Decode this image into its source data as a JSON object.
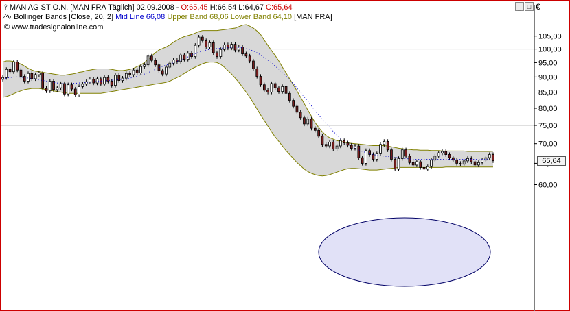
{
  "header": {
    "instrument": "MAN AG ST O.N. [MAN FRA  Täglich] 02.09.2008",
    "ohlc_open": "O:65,45",
    "ohlc_high": "H:66,54",
    "ohlc_low": "L:64,67",
    "ohlc_close": "C:65,64",
    "indicator_prefix": "Bollinger Bands [Close, 20, 2]",
    "mid_line": "Mid Line 66,08",
    "upper_band": "Upper Band 68,06",
    "lower_band": "Lower Band 64,10",
    "indicator_suffix": "[MAN FRA]",
    "copyright": "© www.tradesignalonline.com"
  },
  "window_controls": {
    "minimize": "_",
    "maximize": "□"
  },
  "axis": {
    "currency": "€",
    "last_price": "65,64"
  },
  "colors": {
    "bull": "#ffffff",
    "bear": "#7a1f1f",
    "band_fill": "#d8d8d8",
    "band_line": "#808000",
    "mid_line": "#0000cc",
    "ellipse_fill": "#c8c8f0",
    "ellipse_stroke": "#000066",
    "border": "#cc0000"
  },
  "chart_data": {
    "type": "candlestick",
    "title": "MAN AG ST O.N. [MAN FRA  Täglich] 02.09.2008",
    "yaxis": {
      "scale": "log",
      "range": [
        59.0,
        112.0
      ],
      "ticks": [
        60,
        65,
        70,
        75,
        80,
        85,
        90,
        95,
        100,
        105
      ],
      "tick_labels": [
        "60,00",
        "65,00",
        "70,00",
        "75,00",
        "80,00",
        "85,00",
        "90,00",
        "95,00",
        "100,00",
        "105,00"
      ]
    },
    "grid_lines": [
      75,
      100
    ],
    "closes": [
      89.8,
      92.6,
      91.8,
      95.2,
      92.4,
      90.2,
      88.6,
      91.2,
      89.4,
      90.8,
      91.4,
      86.2,
      85.4,
      88.6,
      85.8,
      86.4,
      87.8,
      84.4,
      87.4,
      86.0,
      84.2,
      86.8,
      87.6,
      88.4,
      89.2,
      88.0,
      89.4,
      87.6,
      89.8,
      88.6,
      87.2,
      90.6,
      88.8,
      89.6,
      91.2,
      90.8,
      92.4,
      91.4,
      93.6,
      94.2,
      97.4,
      95.8,
      94.2,
      92.2,
      91.0,
      93.4,
      94.8,
      96.0,
      95.4,
      97.8,
      96.2,
      98.4,
      97.2,
      101.4,
      104.6,
      103.2,
      100.8,
      102.4,
      98.6,
      97.2,
      99.8,
      101.6,
      100.4,
      101.8,
      99.6,
      100.8,
      98.2,
      97.4,
      95.6,
      92.8,
      90.2,
      87.4,
      85.6,
      85.0,
      87.8,
      86.4,
      85.2,
      86.8,
      84.6,
      82.4,
      80.6,
      78.8,
      77.2,
      75.4,
      76.8,
      74.2,
      73.6,
      72.0,
      69.8,
      69.4,
      70.4,
      68.6,
      69.4,
      70.8,
      70.2,
      69.6,
      68.8,
      69.4,
      66.4,
      65.0,
      68.2,
      67.2,
      66.0,
      67.4,
      69.8,
      70.6,
      68.4,
      66.0,
      63.6,
      66.2,
      68.4,
      66.8,
      65.2,
      64.6,
      65.4,
      64.0,
      63.6,
      64.2,
      65.8,
      66.8,
      67.6,
      68.0,
      67.2,
      66.4,
      65.8,
      65.0,
      64.8,
      65.6,
      66.2,
      65.4,
      64.6,
      65.2,
      65.8,
      66.4,
      67.2,
      65.64
    ],
    "upper_band": [
      95.2,
      95.6,
      95.6,
      95.4,
      95.0,
      94.5,
      93.8,
      93.0,
      92.4,
      92.0,
      91.8,
      91.6,
      91.4,
      91.2,
      91.0,
      90.8,
      90.6,
      90.6,
      90.8,
      91.0,
      91.2,
      91.6,
      91.8,
      92.2,
      92.4,
      92.6,
      92.8,
      92.8,
      92.8,
      92.8,
      92.6,
      92.4,
      92.2,
      92.2,
      92.4,
      92.6,
      93.0,
      93.6,
      94.2,
      95.0,
      96.2,
      97.4,
      98.6,
      99.6,
      100.2,
      100.8,
      101.6,
      102.6,
      103.4,
      104.2,
      104.8,
      105.2,
      105.6,
      106.2,
      106.8,
      107.2,
      107.2,
      107.2,
      107.2,
      107.2,
      107.4,
      107.6,
      107.8,
      108.0,
      108.2,
      108.8,
      109.4,
      109.6,
      109.0,
      108.2,
      107.0,
      105.6,
      103.4,
      101.4,
      99.4,
      97.6,
      95.6,
      93.4,
      91.4,
      89.4,
      87.4,
      85.4,
      83.4,
      81.4,
      79.4,
      77.6,
      75.8,
      74.4,
      73.2,
      72.2,
      71.6,
      71.2,
      70.8,
      70.6,
      70.4,
      70.2,
      70.1,
      70.0,
      69.9,
      69.8,
      69.7,
      69.6,
      69.5,
      69.5,
      69.5,
      69.5,
      69.4,
      69.2,
      69.0,
      68.8,
      68.7,
      68.6,
      68.5,
      68.4,
      68.4,
      68.3,
      68.3,
      68.3,
      68.2,
      68.2,
      68.2,
      68.1,
      68.1,
      68.1,
      68.1,
      68.1,
      68.1,
      68.1,
      68.0,
      68.0,
      68.0,
      68.0,
      68.0,
      68.0,
      68.0,
      68.06
    ],
    "mid_line": [
      89.4,
      89.6,
      89.8,
      90.0,
      90.0,
      89.9,
      89.8,
      89.6,
      89.4,
      89.2,
      89.0,
      88.8,
      88.6,
      88.4,
      88.2,
      88.0,
      87.8,
      87.7,
      87.7,
      87.8,
      87.9,
      88.0,
      88.1,
      88.2,
      88.3,
      88.4,
      88.5,
      88.6,
      88.7,
      88.8,
      88.9,
      89.0,
      89.1,
      89.2,
      89.4,
      89.6,
      89.9,
      90.2,
      90.6,
      91.0,
      91.5,
      92.0,
      92.6,
      93.2,
      93.7,
      94.1,
      94.5,
      95.0,
      95.5,
      96.0,
      96.5,
      97.1,
      97.7,
      98.3,
      98.8,
      99.2,
      99.6,
      99.9,
      100.1,
      100.2,
      100.3,
      100.4,
      100.5,
      100.6,
      100.6,
      100.6,
      100.5,
      100.2,
      99.8,
      99.3,
      98.6,
      97.8,
      96.9,
      95.9,
      94.9,
      93.8,
      92.7,
      91.5,
      90.3,
      89.0,
      87.7,
      86.3,
      84.9,
      83.5,
      82.1,
      80.7,
      79.3,
      78.0,
      76.7,
      75.5,
      74.4,
      73.3,
      72.3,
      71.4,
      70.6,
      69.9,
      69.3,
      68.8,
      68.4,
      68.0,
      67.7,
      67.4,
      67.2,
      67.0,
      66.9,
      66.8,
      66.7,
      66.6,
      66.5,
      66.4,
      66.3,
      66.2,
      66.1,
      66.0,
      66.0,
      66.0,
      66.0,
      66.0,
      66.0,
      66.0,
      66.0,
      66.0,
      66.0,
      66.0,
      66.0,
      66.0,
      66.0,
      66.0,
      66.0,
      66.0,
      66.0,
      66.0,
      66.0,
      66.0,
      66.08
    ],
    "lower_band": [
      83.4,
      83.6,
      84.0,
      84.5,
      85.0,
      85.4,
      85.8,
      86.0,
      86.2,
      86.2,
      86.2,
      86.0,
      85.8,
      85.6,
      85.4,
      85.2,
      85.0,
      84.8,
      84.6,
      84.6,
      84.6,
      84.6,
      84.6,
      84.6,
      84.6,
      84.6,
      84.6,
      84.6,
      84.8,
      85.0,
      85.2,
      85.4,
      85.6,
      85.8,
      86.0,
      86.2,
      86.4,
      86.6,
      86.8,
      87.0,
      87.2,
      87.4,
      87.6,
      87.8,
      88.0,
      88.2,
      88.6,
      89.2,
      89.8,
      90.4,
      91.2,
      92.0,
      92.8,
      93.4,
      94.0,
      94.6,
      95.0,
      95.2,
      95.2,
      95.0,
      94.4,
      93.4,
      92.2,
      91.0,
      89.6,
      88.2,
      86.6,
      85.0,
      83.4,
      81.6,
      79.8,
      78.0,
      76.4,
      74.8,
      73.2,
      71.8,
      70.6,
      69.4,
      68.2,
      67.2,
      66.2,
      65.2,
      64.4,
      63.6,
      63.0,
      62.6,
      62.3,
      62.1,
      62.0,
      62.1,
      62.3,
      62.6,
      62.9,
      63.2,
      63.5,
      63.7,
      63.8,
      63.8,
      63.7,
      63.6,
      63.5,
      63.4,
      63.4,
      63.4,
      63.5,
      63.6,
      63.7,
      63.8,
      63.9,
      64.0,
      64.0,
      64.0,
      64.0,
      64.0,
      64.0,
      64.0,
      64.0,
      64.0,
      64.0,
      64.0,
      64.0,
      64.0,
      64.1,
      64.1,
      64.1,
      64.1,
      64.1,
      64.1,
      64.1,
      64.1,
      64.1,
      64.1,
      64.1,
      64.1,
      64.1,
      64.1
    ],
    "highlight": "ellipse around the consolidation at the right (approx. 63–71)",
    "grid": true
  }
}
